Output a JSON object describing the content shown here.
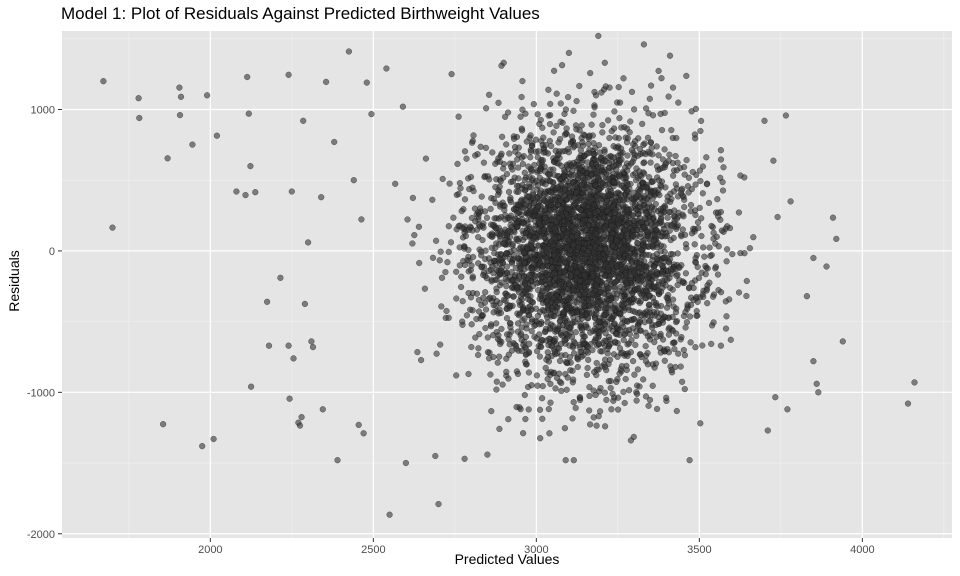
{
  "chart_data": {
    "type": "scatter",
    "title": "Model 1: Plot of Residuals Against Predicted Birthweight Values",
    "xlabel": "Predicted Values",
    "ylabel": "Residuals",
    "xlim": [
      1545,
      4275
    ],
    "ylim": [
      -2030,
      1555
    ],
    "x_ticks": [
      2000,
      2500,
      3000,
      3500,
      4000
    ],
    "y_ticks": [
      -2000,
      -1000,
      0,
      1000
    ],
    "grid": true,
    "point_color": "#333333",
    "point_alpha": 0.6,
    "panel_background": "#e5e5e5",
    "bulk_cloud": {
      "approx_points": 4000,
      "center": [
        3150,
        20
      ],
      "spread_x": 170,
      "spread_y": 430
    },
    "notable_points": [
      {
        "x": 1672,
        "y": 1200
      },
      {
        "x": 1700,
        "y": 165
      },
      {
        "x": 1780,
        "y": 1080
      },
      {
        "x": 1782,
        "y": 940
      },
      {
        "x": 1855,
        "y": -1225
      },
      {
        "x": 1869,
        "y": 655
      },
      {
        "x": 1905,
        "y": 1155
      },
      {
        "x": 1910,
        "y": 1090
      },
      {
        "x": 1907,
        "y": 960
      },
      {
        "x": 1945,
        "y": 752
      },
      {
        "x": 1975,
        "y": -1380
      },
      {
        "x": 1990,
        "y": 1100
      },
      {
        "x": 2010,
        "y": -1330
      },
      {
        "x": 2020,
        "y": 815
      },
      {
        "x": 2080,
        "y": 420
      },
      {
        "x": 2108,
        "y": 395
      },
      {
        "x": 2113,
        "y": 1230
      },
      {
        "x": 2118,
        "y": 970
      },
      {
        "x": 2123,
        "y": 600
      },
      {
        "x": 2125,
        "y": -960
      },
      {
        "x": 2138,
        "y": 415
      },
      {
        "x": 2174,
        "y": -360
      },
      {
        "x": 2180,
        "y": -670
      },
      {
        "x": 2215,
        "y": -190
      },
      {
        "x": 2240,
        "y": -670
      },
      {
        "x": 2240,
        "y": 1245
      },
      {
        "x": 2243,
        "y": -1045
      },
      {
        "x": 2250,
        "y": 420
      },
      {
        "x": 2255,
        "y": -760
      },
      {
        "x": 2270,
        "y": -1215
      },
      {
        "x": 2275,
        "y": -1235
      },
      {
        "x": 2280,
        "y": -1175
      },
      {
        "x": 2285,
        "y": 920
      },
      {
        "x": 2290,
        "y": -375
      },
      {
        "x": 2300,
        "y": 60
      },
      {
        "x": 2310,
        "y": -640
      },
      {
        "x": 2315,
        "y": -680
      },
      {
        "x": 2340,
        "y": 380
      },
      {
        "x": 2345,
        "y": -1120
      },
      {
        "x": 2355,
        "y": 1195
      },
      {
        "x": 2380,
        "y": 770
      },
      {
        "x": 2390,
        "y": -1480
      },
      {
        "x": 2425,
        "y": 1410
      },
      {
        "x": 2440,
        "y": 500
      },
      {
        "x": 2455,
        "y": -1230
      },
      {
        "x": 2470,
        "y": -1290
      },
      {
        "x": 2480,
        "y": 1190
      },
      {
        "x": 2540,
        "y": 1290
      },
      {
        "x": 2550,
        "y": -1865
      },
      {
        "x": 2600,
        "y": -1500
      },
      {
        "x": 2700,
        "y": -1790
      },
      {
        "x": 2690,
        "y": -1450
      },
      {
        "x": 2740,
        "y": 1250
      },
      {
        "x": 2780,
        "y": -1470
      },
      {
        "x": 2850,
        "y": -1440
      },
      {
        "x": 2900,
        "y": 1330
      },
      {
        "x": 3040,
        "y": -1290
      },
      {
        "x": 3090,
        "y": -1480
      },
      {
        "x": 3100,
        "y": 1400
      },
      {
        "x": 3115,
        "y": -1480
      },
      {
        "x": 3190,
        "y": 1520
      },
      {
        "x": 3210,
        "y": 1330
      },
      {
        "x": 3290,
        "y": -1340
      },
      {
        "x": 3330,
        "y": 1460
      },
      {
        "x": 3410,
        "y": 1380
      },
      {
        "x": 3470,
        "y": -1480
      },
      {
        "x": 3700,
        "y": 920
      },
      {
        "x": 3710,
        "y": -1270
      },
      {
        "x": 3740,
        "y": 240
      },
      {
        "x": 3770,
        "y": -1120
      },
      {
        "x": 3780,
        "y": 350
      },
      {
        "x": 3830,
        "y": -320
      },
      {
        "x": 3850,
        "y": -50
      },
      {
        "x": 3850,
        "y": -780
      },
      {
        "x": 3860,
        "y": -940
      },
      {
        "x": 3865,
        "y": -1000
      },
      {
        "x": 3890,
        "y": -110
      },
      {
        "x": 3910,
        "y": 235
      },
      {
        "x": 3920,
        "y": 85
      },
      {
        "x": 3940,
        "y": -640
      },
      {
        "x": 4140,
        "y": -1080
      },
      {
        "x": 4160,
        "y": -930
      }
    ]
  }
}
